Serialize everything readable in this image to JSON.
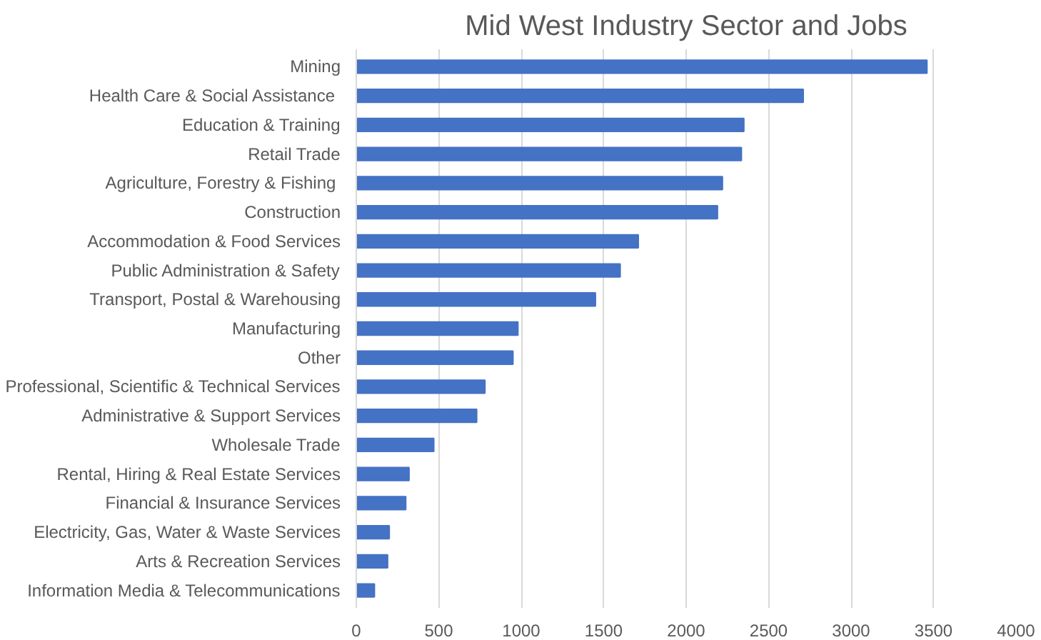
{
  "chart_data": {
    "type": "bar",
    "orientation": "horizontal",
    "title": "Mid West Industry Sector and Jobs",
    "categories": [
      "Mining",
      "Health Care & Social Assistance ",
      "Education & Training",
      "Retail Trade",
      "Agriculture, Forestry & Fishing ",
      "Construction",
      "Accommodation & Food Services",
      "Public Administration & Safety",
      "Transport, Postal & Warehousing",
      "Manufacturing",
      "Other",
      "Professional, Scientific & Technical Services",
      "Administrative & Support Services",
      "Wholesale Trade",
      "Rental, Hiring & Real Estate Services",
      "Financial & Insurance Services",
      "Electricity, Gas, Water & Waste Services",
      "Arts & Recreation Services",
      "Information Media & Telecommunications"
    ],
    "values": [
      3460,
      2710,
      2350,
      2335,
      2220,
      2190,
      1710,
      1600,
      1450,
      980,
      950,
      780,
      730,
      470,
      320,
      300,
      200,
      190,
      110
    ],
    "color": "#4472c4",
    "xlim": [
      0,
      4000
    ],
    "xticks": [
      0,
      500,
      1000,
      1500,
      2000,
      2500,
      3000,
      3500,
      4000
    ],
    "grid": "x"
  }
}
